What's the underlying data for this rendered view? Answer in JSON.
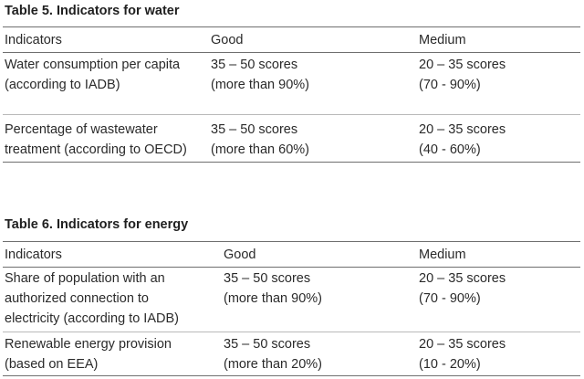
{
  "table5": {
    "title": "Table 5. Indicators for water",
    "headers": [
      "Indicators",
      "Good",
      "Medium"
    ],
    "rows": [
      {
        "indicator": [
          "Water consumption per capita",
          "(according to IADB)"
        ],
        "good": [
          "35 – 50 scores",
          "(more than 90%)"
        ],
        "medium": [
          "20 – 35 scores",
          "(70 - 90%)"
        ]
      },
      {
        "indicator": [
          "Percentage of wastewater",
          "treatment (according to OECD)"
        ],
        "good": [
          "35 – 50 scores",
          "(more than 60%)"
        ],
        "medium": [
          "20 – 35 scores",
          "(40 - 60%)"
        ]
      }
    ]
  },
  "table6": {
    "title": "Table 6. Indicators for energy",
    "headers": [
      "Indicators",
      "Good",
      "Medium"
    ],
    "rows": [
      {
        "indicator": [
          "Share of population with an",
          "authorized connection to",
          "electricity (according to IADB)"
        ],
        "good": [
          "35 – 50 scores",
          "(more than 90%)"
        ],
        "medium": [
          "20 – 35 scores",
          "(70 - 90%)"
        ]
      },
      {
        "indicator": [
          "Renewable energy provision",
          "(based on EEA)"
        ],
        "good": [
          "35 – 50 scores",
          "(more than 20%)"
        ],
        "medium": [
          "20 – 35 scores",
          "(10 - 20%)"
        ]
      }
    ]
  }
}
